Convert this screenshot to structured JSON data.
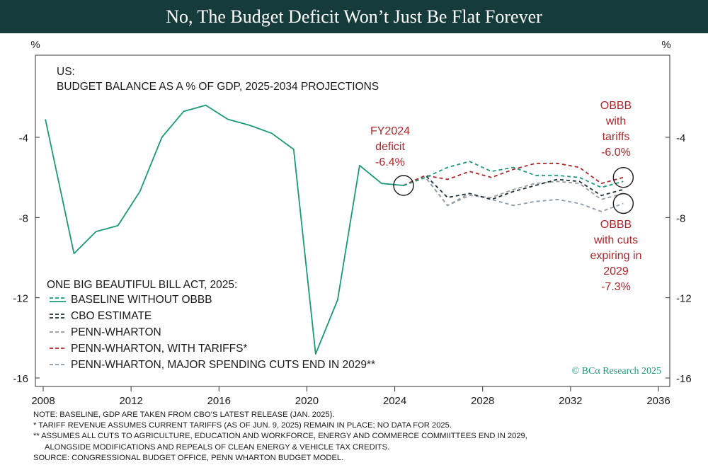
{
  "banner": {
    "title": "No, The Budget Deficit Won’t Just Be Flat Forever"
  },
  "colors": {
    "baseline": "#1a9a78",
    "cbo": "#1e2f36",
    "penn_wharton": "#9a9a9a",
    "tariffs": "#b0262b",
    "cuts_end": "#8c9aaa",
    "annotation": "#b0262b",
    "banner": "#153b3a"
  },
  "chart_data": {
    "type": "line",
    "panel_title_line1": "US:",
    "panel_title_line2": "BUDGET BALANCE AS A % OF GDP, 2025-2034 PROJECTIONS",
    "y_unit_left": "%",
    "y_unit_right": "%",
    "xlim": [
      2008,
      2037
    ],
    "ylim": [
      -16.2,
      0.3
    ],
    "x_ticks": [
      2008,
      2012,
      2016,
      2020,
      2024,
      2028,
      2032,
      2036
    ],
    "y_ticks": [
      -4,
      -8,
      -12,
      -16
    ],
    "legend_title": "ONE BIG BEAUTIFUL BILL ACT, 2025:",
    "legend_position": "bottom-left",
    "series": [
      {
        "key": "baseline",
        "name": "BASELINE WITHOUT OBBB",
        "style": "solid-and-dashed",
        "x": [
          2008.1,
          2009.4,
          2010.4,
          2011.4,
          2012.4,
          2013.4,
          2014.4,
          2015.4,
          2016.4,
          2017.4,
          2018.4,
          2019.4,
          2020.4,
          2021.4,
          2022.4,
          2023.4,
          2024.4
        ],
        "y": [
          -3.1,
          -9.8,
          -8.7,
          -8.4,
          -6.7,
          -4.0,
          -2.7,
          -2.4,
          -3.1,
          -3.4,
          -3.8,
          -4.6,
          -14.8,
          -12.1,
          -5.4,
          -6.3,
          -6.4
        ],
        "x_projection": [
          2024.4,
          2025.4,
          2026.4,
          2027.4,
          2028.4,
          2029.4,
          2030.4,
          2031.4,
          2032.4,
          2033.4,
          2034.4
        ],
        "y_projection": [
          -6.4,
          -6.0,
          -5.5,
          -5.2,
          -5.7,
          -5.5,
          -5.9,
          -5.9,
          -6.0,
          -6.5,
          -6.2
        ]
      },
      {
        "key": "cbo",
        "name": "CBO ESTIMATE",
        "style": "dashed",
        "x": [
          2024.4,
          2025.4,
          2026.4,
          2027.4,
          2028.4,
          2029.4,
          2030.4,
          2031.4,
          2032.4,
          2033.4,
          2034.4
        ],
        "y": [
          -6.4,
          -5.9,
          -7.0,
          -6.8,
          -7.1,
          -6.7,
          -6.4,
          -6.1,
          -6.2,
          -6.9,
          -6.6
        ]
      },
      {
        "key": "penn_wharton",
        "name": "PENN-WHARTON",
        "style": "dashed",
        "x": [
          2024.4,
          2025.4,
          2026.4,
          2027.4,
          2028.4,
          2029.4,
          2030.4,
          2031.4,
          2032.4,
          2033.4,
          2034.4
        ],
        "y": [
          -6.4,
          -6.0,
          -7.4,
          -6.9,
          -7.0,
          -6.6,
          -6.3,
          -6.2,
          -6.3,
          -7.1,
          -6.8
        ]
      },
      {
        "key": "tariffs",
        "name": "PENN-WHARTON, WITH TARIFFS*",
        "style": "dashed",
        "x": [
          2024.4,
          2025.4,
          2026.4,
          2027.4,
          2028.4,
          2029.4,
          2030.4,
          2031.4,
          2032.4,
          2033.4,
          2034.4
        ],
        "y": [
          -6.4,
          -5.9,
          -6.1,
          -5.7,
          -6.0,
          -5.6,
          -5.3,
          -5.3,
          -5.5,
          -6.3,
          -6.0
        ]
      },
      {
        "key": "cuts_end",
        "name": "PENN-WHARTON, MAJOR SPENDING CUTS END IN 2029**",
        "style": "dashed",
        "x": [
          2024.4,
          2025.4,
          2026.4,
          2027.4,
          2028.4,
          2029.4,
          2030.4,
          2031.4,
          2032.4,
          2033.4,
          2034.4
        ],
        "y": [
          -6.4,
          -6.0,
          -7.4,
          -6.8,
          -7.1,
          -7.4,
          -7.2,
          -7.1,
          -7.3,
          -7.7,
          -7.3
        ]
      }
    ],
    "annotations": [
      {
        "key": "fy2024",
        "lines": [
          "FY2024",
          "deficit",
          "-6.4%"
        ],
        "circle": [
          2024.4,
          -6.4
        ]
      },
      {
        "key": "with_tariffs",
        "lines": [
          "OBBB",
          "with",
          "tariffs",
          "-6.0%"
        ],
        "circle": [
          2034.4,
          -6.0
        ]
      },
      {
        "key": "with_cuts",
        "lines": [
          "OBBB",
          "with cuts",
          "expiring in",
          "2029",
          "-7.3%"
        ],
        "circle": [
          2034.4,
          -7.3
        ]
      }
    ],
    "source_credit": "© BCα Research 2025"
  },
  "notes": {
    "line1": "NOTE: BASELINE, GDP ARE TAKEN FROM CBO’S LATEST RELEASE (JAN. 2025).",
    "line2": "*  TARIFF REVENUE ASSUMES CURRENT TARIFFS (AS OF JUN. 9, 2025) REMAIN IN PLACE; NO DATA FOR 2025.",
    "line3": "** ASSUMES ALL CUTS TO AGRICULTURE, EDUCATION AND WORKFORCE, ENERGY AND COMMERCE COMMIITTEES END IN 2029,",
    "line4": "ALONGSIDE MODIFICATIONS AND REPEALS OF CLEAN ENERGY & VEHICLE TAX CREDITS.",
    "line5": "SOURCE: CONGRESSIONAL BUDGET OFFICE, PENN WHARTON BUDGET MODEL."
  }
}
